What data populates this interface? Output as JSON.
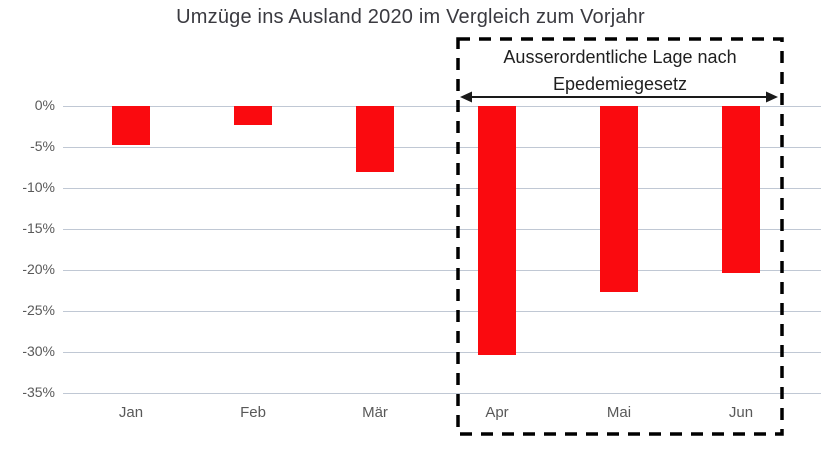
{
  "title": "Umzüge ins Ausland 2020 im Vergleich zum Vorjahr",
  "annotation": {
    "line1": "Ausserordentliche Lage nach",
    "line2": "Epedemiegesetz"
  },
  "chart_data": {
    "type": "bar",
    "title": "Umzüge ins Ausland 2020 im Vergleich zum Vorjahr",
    "categories": [
      "Jan",
      "Feb",
      "Mär",
      "Apr",
      "Mai",
      "Jun"
    ],
    "values": [
      -4.7,
      -2.3,
      -8.0,
      -30.4,
      -22.7,
      -20.4
    ],
    "unit": "%",
    "xlabel": "",
    "ylabel": "",
    "ylim": [
      -35,
      0
    ],
    "ytick_step": 5,
    "ytick_labels": [
      "0%",
      "-5%",
      "-10%",
      "-15%",
      "-20%",
      "-25%",
      "-30%",
      "-35%"
    ],
    "grid": true,
    "legend_position": "none",
    "bar_color": "#fa0a0f",
    "gridline_color": "#c0c8d4",
    "annotation_box": {
      "text": "Ausserordentliche Lage nach Epedemiegesetz",
      "applies_to_categories": [
        "Apr",
        "Mai",
        "Jun"
      ],
      "style": "dashed-rectangle-with-double-arrow",
      "border_color": "#000000"
    }
  }
}
